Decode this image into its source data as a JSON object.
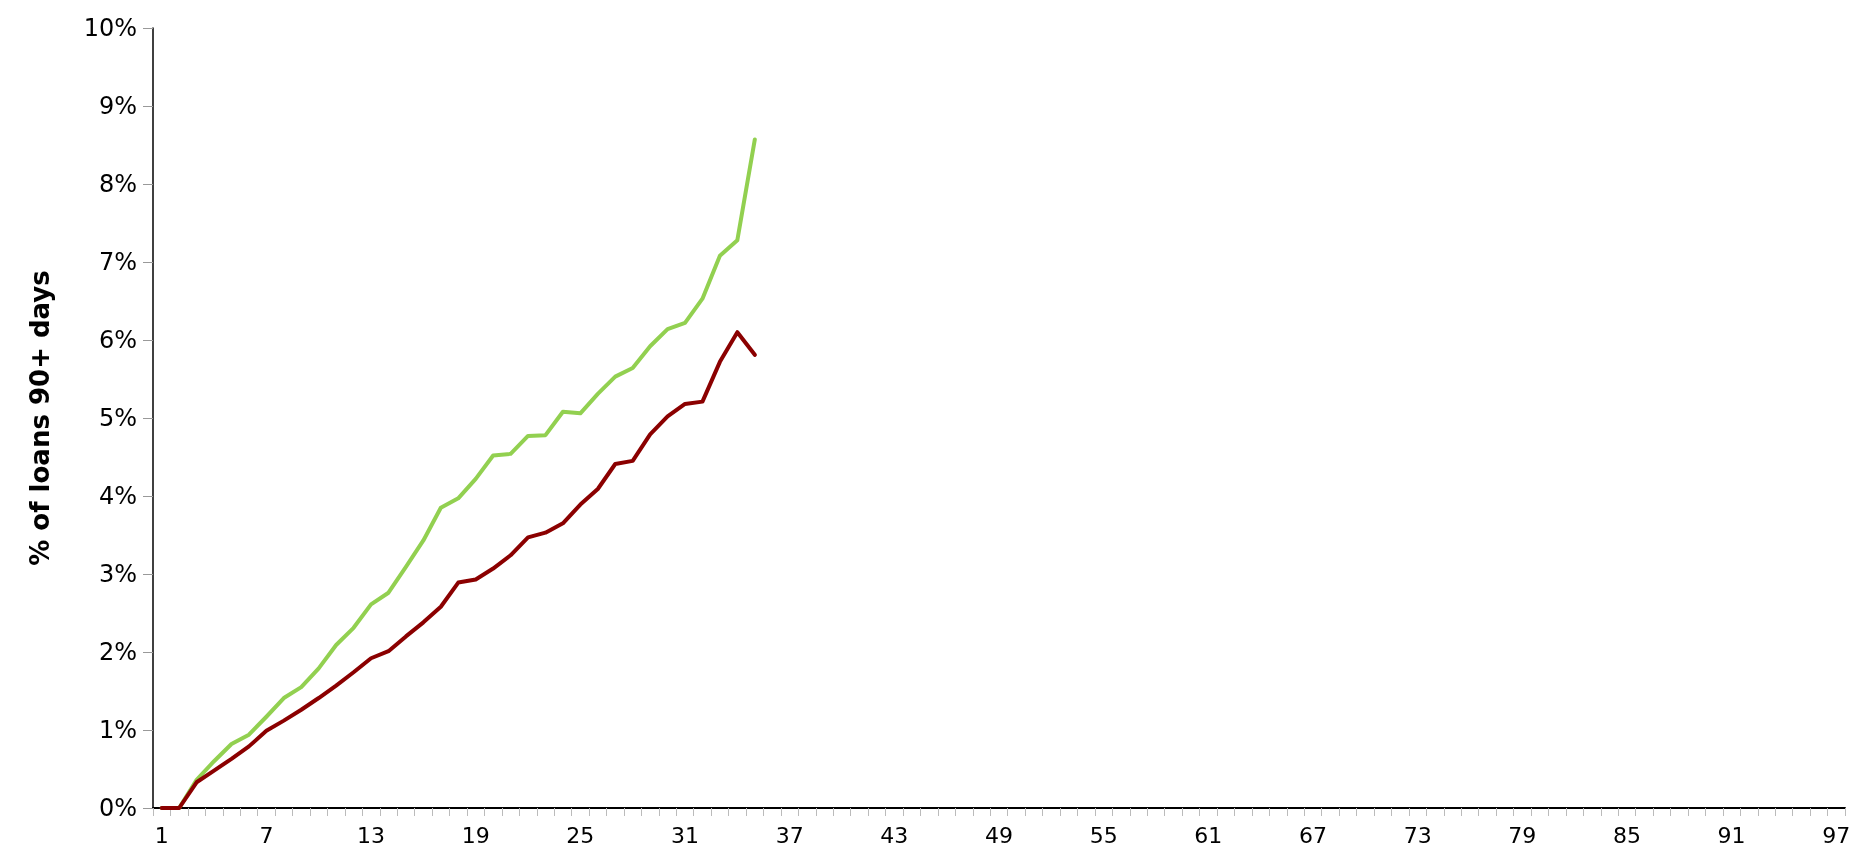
{
  "chart_data": {
    "type": "line",
    "ylabel": "% of loans 90+ days",
    "categories": [
      "1",
      null,
      null,
      null,
      null,
      null,
      "7",
      null,
      null,
      null,
      null,
      null,
      "13",
      null,
      null,
      null,
      null,
      null,
      "19",
      null,
      null,
      null,
      null,
      null,
      "25",
      null,
      null,
      null,
      null,
      null,
      "31",
      null,
      null,
      null,
      null,
      null,
      "37",
      null,
      null,
      null,
      null,
      null,
      "43",
      null,
      null,
      null,
      null,
      null,
      "49",
      null,
      null,
      null,
      null,
      null,
      "55",
      null,
      null,
      null,
      null,
      null,
      "61",
      null,
      null,
      null,
      null,
      null,
      "67",
      null,
      null,
      null,
      null,
      null,
      "73",
      null,
      null,
      null,
      null,
      null,
      "79",
      null,
      null,
      null,
      null,
      null,
      "85",
      null,
      null,
      null,
      null,
      null,
      "91",
      null,
      null,
      null,
      null,
      null,
      "97"
    ],
    "series": [
      {
        "color": "#92d050",
        "values": [
          0,
          0,
          0.36,
          0.6,
          0.82,
          0.94,
          1.17,
          1.41,
          1.55,
          1.79,
          2.09,
          2.31,
          2.61,
          2.76,
          3.09,
          3.43,
          3.85,
          3.97,
          4.22,
          4.52,
          4.54,
          4.77,
          4.78,
          5.08,
          5.06,
          5.31,
          5.53,
          5.64,
          5.92,
          6.14,
          6.22,
          6.53,
          7.08,
          7.28,
          8.57,
          null,
          null,
          null,
          null,
          null,
          null,
          null,
          null,
          null,
          null,
          null,
          null,
          null,
          null,
          null,
          null,
          null,
          null,
          null,
          null,
          null,
          null,
          null,
          null,
          null,
          null,
          null,
          null,
          null,
          null,
          null,
          null,
          null,
          null,
          null,
          null,
          null,
          null,
          null,
          null,
          null,
          null,
          null,
          null,
          null,
          null,
          null,
          null,
          null,
          null,
          null,
          null,
          null,
          null,
          null,
          null,
          null,
          null,
          null,
          null,
          null,
          null
        ]
      },
      {
        "color": "#8b0000",
        "values": [
          0,
          0,
          0.33,
          0.48,
          0.63,
          0.79,
          0.99,
          1.12,
          1.26,
          1.41,
          1.57,
          1.74,
          1.92,
          2.01,
          2.2,
          2.38,
          2.58,
          2.89,
          2.93,
          3.07,
          3.24,
          3.47,
          3.53,
          3.65,
          3.89,
          4.09,
          4.41,
          4.45,
          4.79,
          5.02,
          5.18,
          5.21,
          5.72,
          6.1,
          5.81,
          null,
          null,
          null,
          null,
          null,
          null,
          null,
          null,
          null,
          null,
          null,
          null,
          null,
          null,
          null,
          null,
          null,
          null,
          null,
          null,
          null,
          null,
          null,
          null,
          null,
          null,
          null,
          null,
          null,
          null,
          null,
          null,
          null,
          null,
          null,
          null,
          null,
          null,
          null,
          null,
          null,
          null,
          null,
          null,
          null,
          null,
          null,
          null,
          null,
          null,
          null,
          null,
          null,
          null,
          null,
          null,
          null,
          null,
          null,
          null,
          null,
          null
        ]
      }
    ],
    "ylim": [
      0,
      10
    ],
    "yticks": [
      {
        "value": 0,
        "label": "0%"
      },
      {
        "value": 1,
        "label": "1%"
      },
      {
        "value": 2,
        "label": "2%"
      },
      {
        "value": 3,
        "label": "3%"
      },
      {
        "value": 4,
        "label": "4%"
      },
      {
        "value": 5,
        "label": "5%"
      },
      {
        "value": 6,
        "label": "6%"
      },
      {
        "value": 7,
        "label": "7%"
      },
      {
        "value": 8,
        "label": "8%"
      },
      {
        "value": 9,
        "label": "9%"
      },
      {
        "value": 10,
        "label": "10%"
      }
    ],
    "marker": "none",
    "line_style": "solid"
  }
}
